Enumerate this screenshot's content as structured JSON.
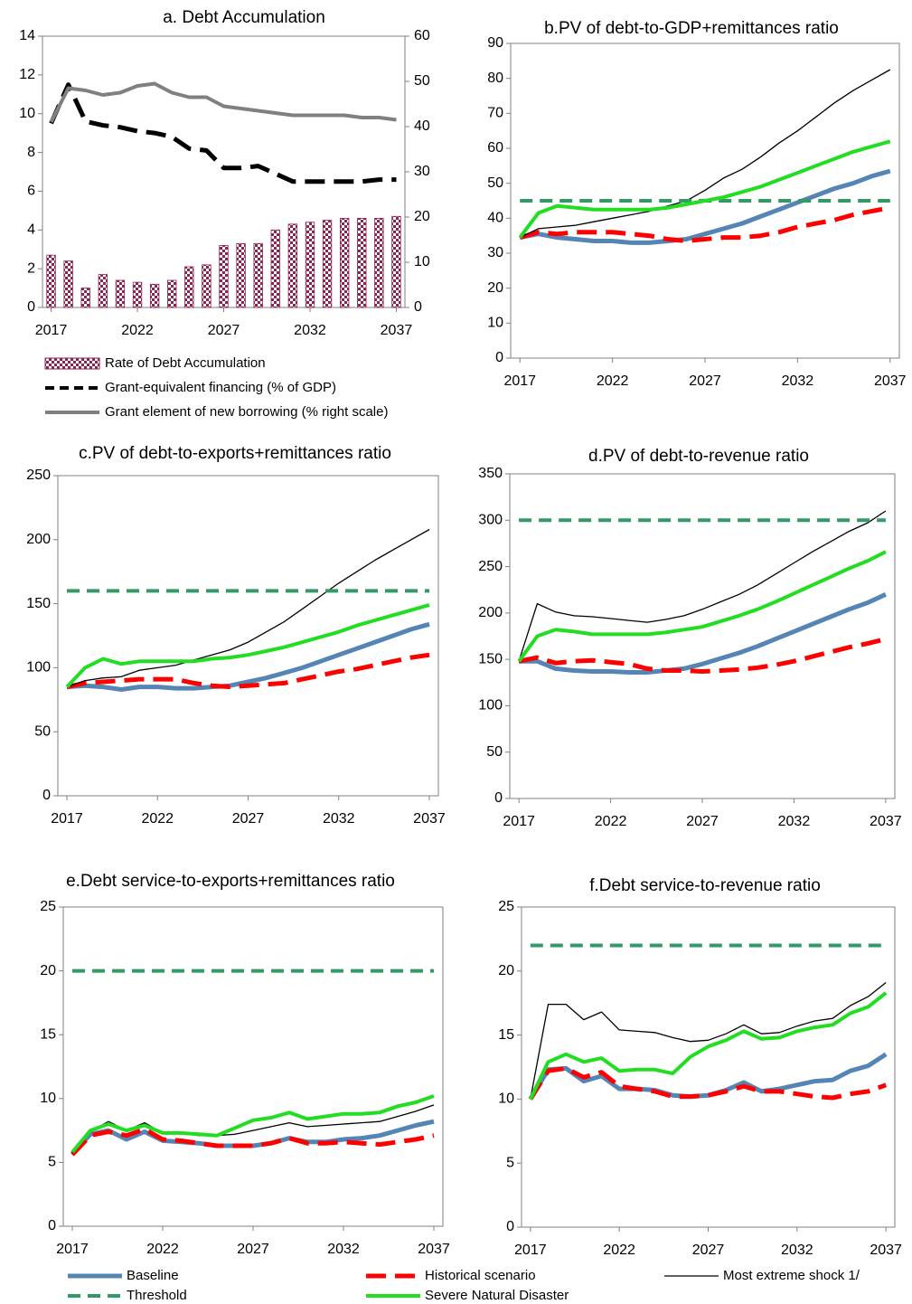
{
  "chart_data": [
    {
      "type": "combo",
      "title": "a. Debt Accumulation",
      "x": [
        2017,
        2018,
        2019,
        2020,
        2021,
        2022,
        2023,
        2024,
        2025,
        2026,
        2027,
        2028,
        2029,
        2030,
        2031,
        2032,
        2033,
        2034,
        2035,
        2036,
        2037
      ],
      "xlim": [
        2016.5,
        2037.5
      ],
      "xticks": [
        2017,
        2022,
        2027,
        2032,
        2037
      ],
      "ylim": [
        0,
        14
      ],
      "yticks": [
        0,
        2,
        4,
        6,
        8,
        10,
        12,
        14
      ],
      "y2lim": [
        0,
        60
      ],
      "y2ticks": [
        0,
        10,
        20,
        30,
        40,
        50,
        60
      ],
      "series": [
        {
          "name": "Rate of Debt Accumulation",
          "kind": "bar",
          "color": "#8b2252",
          "values": [
            2.7,
            2.4,
            1.0,
            1.7,
            1.4,
            1.3,
            1.2,
            1.4,
            2.1,
            2.2,
            3.2,
            3.3,
            3.3,
            4.0,
            4.3,
            4.4,
            4.5,
            4.6,
            4.6,
            4.6,
            4.7
          ]
        },
        {
          "name": "Grant-equivalent financing (% of GDP)",
          "kind": "line",
          "color": "#000000",
          "line_style": "dashed",
          "values": [
            9.5,
            11.5,
            9.6,
            9.4,
            9.3,
            9.1,
            9.0,
            8.8,
            8.2,
            8.1,
            7.2,
            7.2,
            7.3,
            6.9,
            6.5,
            6.5,
            6.5,
            6.5,
            6.5,
            6.6,
            6.6
          ]
        },
        {
          "name": "Grant element of new borrowing (% right scale)",
          "kind": "line",
          "color": "#808080",
          "line_style": "solid",
          "axis": "y2",
          "values": [
            41,
            48.5,
            48,
            47,
            47.5,
            49,
            49.5,
            47.5,
            46.5,
            46.5,
            44.5,
            44,
            43.5,
            43,
            42.5,
            42.5,
            42.5,
            42.5,
            42,
            42,
            41.5
          ]
        }
      ]
    },
    {
      "type": "line",
      "title": "b.PV of debt-to-GDP+remittances  ratio",
      "x": [
        2017,
        2018,
        2019,
        2020,
        2021,
        2022,
        2023,
        2024,
        2025,
        2026,
        2027,
        2028,
        2029,
        2030,
        2031,
        2032,
        2033,
        2034,
        2035,
        2036,
        2037
      ],
      "xlim": [
        2016.5,
        2037.5
      ],
      "xticks": [
        2017,
        2022,
        2027,
        2032,
        2037
      ],
      "ylim": [
        0,
        90
      ],
      "yticks": [
        0,
        10,
        20,
        30,
        40,
        50,
        60,
        70,
        80,
        90
      ],
      "series": [
        {
          "name": "Baseline",
          "color": "#5585b5",
          "line_style": "thick",
          "values": [
            34.5,
            35.5,
            34.5,
            34,
            33.5,
            33.5,
            33,
            33,
            33.5,
            34,
            35.5,
            37,
            38.5,
            40.5,
            42.5,
            44.5,
            46.5,
            48.5,
            50,
            52,
            53.5
          ]
        },
        {
          "name": "Historical scenario",
          "color": "#ff0000",
          "line_style": "dashed",
          "values": [
            34.5,
            36,
            35.5,
            36,
            36,
            36,
            35.5,
            35,
            34,
            33.5,
            34,
            34.5,
            34.5,
            35,
            36,
            37.5,
            38.5,
            39.5,
            41,
            42,
            43
          ]
        },
        {
          "name": "Most extreme shock  1/",
          "color": "#000000",
          "line_style": "thin",
          "values": [
            34.5,
            37,
            37.5,
            38,
            39,
            40,
            41,
            42,
            43.5,
            45,
            48,
            51.5,
            54,
            57.5,
            61.5,
            65,
            69,
            73,
            76.5,
            79.5,
            82.5
          ]
        },
        {
          "name": "Threshold",
          "color": "#339966",
          "line_style": "dotted",
          "values": [
            45,
            45,
            45,
            45,
            45,
            45,
            45,
            45,
            45,
            45,
            45,
            45,
            45,
            45,
            45,
            45,
            45,
            45,
            45,
            45,
            45
          ]
        },
        {
          "name": "Severe Natural Disaster",
          "color": "#22dd22",
          "line_style": "solid",
          "values": [
            34.5,
            41.5,
            43.5,
            43,
            42.5,
            42.5,
            42.5,
            42.5,
            43,
            44,
            45,
            46,
            47.5,
            49,
            51,
            53,
            55,
            57,
            59,
            60.5,
            62
          ]
        }
      ]
    },
    {
      "type": "line",
      "title": "c.PV of debt-to-exports+remittances  ratio",
      "x": [
        2017,
        2018,
        2019,
        2020,
        2021,
        2022,
        2023,
        2024,
        2025,
        2026,
        2027,
        2028,
        2029,
        2030,
        2031,
        2032,
        2033,
        2034,
        2035,
        2036,
        2037
      ],
      "xlim": [
        2016.5,
        2037.5
      ],
      "xticks": [
        2017,
        2022,
        2027,
        2032,
        2037
      ],
      "ylim": [
        0,
        250
      ],
      "yticks": [
        0,
        50,
        100,
        150,
        200,
        250
      ],
      "series": [
        {
          "name": "Baseline",
          "color": "#5585b5",
          "line_style": "thick",
          "values": [
            85,
            86,
            85,
            83,
            85,
            85,
            84,
            84,
            85,
            86,
            89,
            92,
            96,
            100,
            105,
            110,
            115,
            120,
            125,
            130,
            134
          ]
        },
        {
          "name": "Historical scenario",
          "color": "#ff0000",
          "line_style": "dashed",
          "values": [
            85,
            88,
            89,
            90,
            91,
            91,
            91,
            88,
            86,
            85,
            86,
            87,
            88,
            91,
            94,
            97,
            99,
            102,
            105,
            108,
            110
          ]
        },
        {
          "name": "Most extreme shock  1/",
          "color": "#000000",
          "line_style": "thin",
          "values": [
            85,
            90,
            92,
            93,
            98,
            100,
            102,
            106,
            110,
            114,
            120,
            128,
            136,
            146,
            156,
            166,
            175,
            184,
            192,
            200,
            208
          ]
        },
        {
          "name": "Threshold",
          "color": "#339966",
          "line_style": "dotted",
          "values": [
            160,
            160,
            160,
            160,
            160,
            160,
            160,
            160,
            160,
            160,
            160,
            160,
            160,
            160,
            160,
            160,
            160,
            160,
            160,
            160,
            160
          ]
        },
        {
          "name": "Severe Natural Disaster",
          "color": "#22dd22",
          "line_style": "solid",
          "values": [
            85,
            100,
            107,
            103,
            105,
            105,
            105,
            105,
            107,
            108,
            110,
            113,
            116,
            120,
            124,
            128,
            133,
            137,
            141,
            145,
            149
          ]
        }
      ]
    },
    {
      "type": "line",
      "title": "d.PV of debt-to-revenue  ratio",
      "x": [
        2017,
        2018,
        2019,
        2020,
        2021,
        2022,
        2023,
        2024,
        2025,
        2026,
        2027,
        2028,
        2029,
        2030,
        2031,
        2032,
        2033,
        2034,
        2035,
        2036,
        2037
      ],
      "xlim": [
        2016.5,
        2037.5
      ],
      "xticks": [
        2017,
        2022,
        2027,
        2032,
        2037
      ],
      "ylim": [
        0,
        350
      ],
      "yticks": [
        0,
        50,
        100,
        150,
        200,
        250,
        300,
        350
      ],
      "series": [
        {
          "name": "Baseline",
          "color": "#5585b5",
          "line_style": "thick",
          "values": [
            148,
            148,
            140,
            138,
            137,
            137,
            136,
            136,
            138,
            140,
            145,
            151,
            157,
            164,
            172,
            180,
            188,
            196,
            204,
            211,
            220
          ]
        },
        {
          "name": "Historical scenario",
          "color": "#ff0000",
          "line_style": "dashed",
          "values": [
            148,
            152,
            146,
            148,
            149,
            147,
            145,
            140,
            138,
            138,
            137,
            138,
            139,
            141,
            144,
            148,
            153,
            158,
            163,
            167,
            172
          ]
        },
        {
          "name": "Most extreme shock  1/",
          "color": "#000000",
          "line_style": "thin",
          "values": [
            148,
            210,
            201,
            197,
            196,
            194,
            192,
            190,
            193,
            197,
            204,
            212,
            220,
            230,
            242,
            254,
            266,
            277,
            288,
            297,
            310
          ]
        },
        {
          "name": "Threshold",
          "color": "#339966",
          "line_style": "dotted",
          "values": [
            300,
            300,
            300,
            300,
            300,
            300,
            300,
            300,
            300,
            300,
            300,
            300,
            300,
            300,
            300,
            300,
            300,
            300,
            300,
            300,
            300
          ]
        },
        {
          "name": "Severe Natural Disaster",
          "color": "#22dd22",
          "line_style": "solid",
          "values": [
            148,
            175,
            182,
            180,
            177,
            177,
            177,
            177,
            179,
            182,
            185,
            191,
            197,
            204,
            212,
            221,
            230,
            239,
            248,
            256,
            266
          ]
        }
      ]
    },
    {
      "type": "line",
      "title": "e.Debt service-to-exports+remittances  ratio",
      "x": [
        2017,
        2018,
        2019,
        2020,
        2021,
        2022,
        2023,
        2024,
        2025,
        2026,
        2027,
        2028,
        2029,
        2030,
        2031,
        2032,
        2033,
        2034,
        2035,
        2036,
        2037
      ],
      "xlim": [
        2016.5,
        2037.5
      ],
      "xticks": [
        2017,
        2022,
        2027,
        2032,
        2037
      ],
      "ylim": [
        0,
        25
      ],
      "yticks": [
        0,
        5,
        10,
        15,
        20,
        25
      ],
      "series": [
        {
          "name": "Baseline",
          "color": "#5585b5",
          "line_style": "thick",
          "values": [
            5.7,
            7.2,
            7.5,
            6.8,
            7.4,
            6.7,
            6.6,
            6.5,
            6.3,
            6.3,
            6.3,
            6.5,
            6.9,
            6.6,
            6.6,
            6.8,
            6.9,
            7.1,
            7.5,
            7.9,
            8.2
          ]
        },
        {
          "name": "Historical scenario",
          "color": "#ff0000",
          "line_style": "dashed",
          "values": [
            5.6,
            7.1,
            7.4,
            7.1,
            7.6,
            6.8,
            6.7,
            6.5,
            6.3,
            6.3,
            6.3,
            6.5,
            6.9,
            6.5,
            6.5,
            6.6,
            6.5,
            6.4,
            6.6,
            6.8,
            7.1
          ]
        },
        {
          "name": "Most extreme shock  1/",
          "color": "#000000",
          "line_style": "thin",
          "values": [
            5.7,
            7.4,
            8.2,
            7.5,
            8.1,
            7.3,
            7.3,
            7.1,
            7.1,
            7.2,
            7.5,
            7.8,
            8.1,
            7.8,
            7.9,
            8.0,
            8.1,
            8.2,
            8.6,
            9.0,
            9.5
          ]
        },
        {
          "name": "Threshold",
          "color": "#339966",
          "line_style": "dotted",
          "values": [
            20,
            20,
            20,
            20,
            20,
            20,
            20,
            20,
            20,
            20,
            20,
            20,
            20,
            20,
            20,
            20,
            20,
            20,
            20,
            20,
            20
          ]
        },
        {
          "name": "Severe Natural Disaster",
          "color": "#22dd22",
          "line_style": "solid",
          "values": [
            5.8,
            7.5,
            8.0,
            7.5,
            7.9,
            7.3,
            7.3,
            7.2,
            7.1,
            7.7,
            8.3,
            8.5,
            8.9,
            8.4,
            8.6,
            8.8,
            8.8,
            8.9,
            9.4,
            9.7,
            10.2
          ]
        }
      ]
    },
    {
      "type": "line",
      "title": "f.Debt service-to-revenue  ratio",
      "x": [
        2017,
        2018,
        2019,
        2020,
        2021,
        2022,
        2023,
        2024,
        2025,
        2026,
        2027,
        2028,
        2029,
        2030,
        2031,
        2032,
        2033,
        2034,
        2035,
        2036,
        2037
      ],
      "xlim": [
        2016.5,
        2037.5
      ],
      "xticks": [
        2017,
        2022,
        2027,
        2032,
        2037
      ],
      "ylim": [
        0,
        25
      ],
      "yticks": [
        0,
        5,
        10,
        15,
        20,
        25
      ],
      "series": [
        {
          "name": "Baseline",
          "color": "#5585b5",
          "line_style": "thick",
          "values": [
            10,
            12.3,
            12.4,
            11.4,
            11.8,
            10.8,
            10.8,
            10.7,
            10.3,
            10.2,
            10.3,
            10.7,
            11.3,
            10.6,
            10.8,
            11.1,
            11.4,
            11.5,
            12.2,
            12.6,
            13.5
          ]
        },
        {
          "name": "Historical scenario",
          "color": "#ff0000",
          "line_style": "dashed",
          "values": [
            10,
            12.2,
            12.4,
            11.7,
            12.1,
            11.0,
            10.8,
            10.6,
            10.2,
            10.2,
            10.3,
            10.6,
            11.0,
            10.6,
            10.6,
            10.4,
            10.2,
            10.1,
            10.4,
            10.6,
            11.1
          ]
        },
        {
          "name": "Most extreme shock  1/",
          "color": "#000000",
          "line_style": "thin",
          "values": [
            10,
            17.4,
            17.4,
            16.2,
            16.8,
            15.4,
            15.3,
            15.2,
            14.8,
            14.5,
            14.6,
            15.1,
            15.8,
            15.1,
            15.2,
            15.7,
            16.1,
            16.3,
            17.3,
            18.0,
            19.1
          ]
        },
        {
          "name": "Threshold",
          "color": "#339966",
          "line_style": "dotted",
          "values": [
            22,
            22,
            22,
            22,
            22,
            22,
            22,
            22,
            22,
            22,
            22,
            22,
            22,
            22,
            22,
            22,
            22,
            22,
            22,
            22,
            22
          ]
        },
        {
          "name": "Severe Natural Disaster",
          "color": "#22dd22",
          "line_style": "solid",
          "values": [
            10,
            12.9,
            13.5,
            12.9,
            13.2,
            12.2,
            12.3,
            12.3,
            12.0,
            13.3,
            14.1,
            14.6,
            15.3,
            14.7,
            14.8,
            15.3,
            15.6,
            15.8,
            16.7,
            17.2,
            18.3
          ]
        }
      ]
    }
  ]
}
